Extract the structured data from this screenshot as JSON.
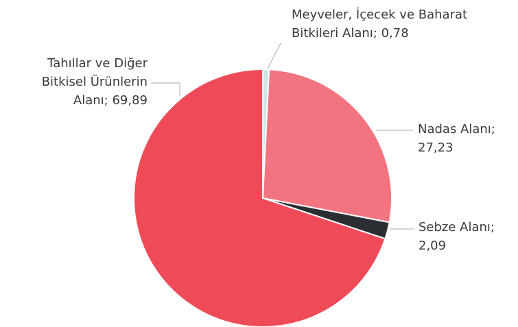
{
  "chart_data": {
    "type": "pie",
    "categories": [
      "Meyveler, İçecek ve Baharat Bitkileri Alanı;",
      "Nadas Alanı;",
      "Sebze Alanı;",
      "Tahıllar ve Diğer Bitkisel Ürünlerin Alanı;"
    ],
    "values": [
      0.78,
      27.23,
      2.09,
      69.89
    ],
    "value_labels": [
      "0,78",
      "27,23",
      "2,09",
      "69,89"
    ],
    "colors": [
      "#cfe6e4",
      "#f27480",
      "#2b2e33",
      "#ef4a57"
    ]
  }
}
